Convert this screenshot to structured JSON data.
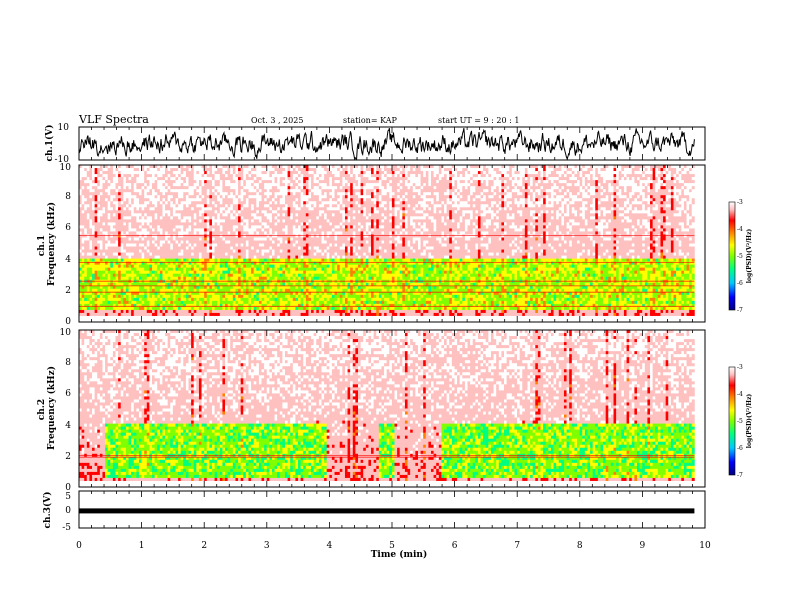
{
  "header": {
    "title": "VLF Spectra",
    "date": "Oct. 3  , 2025",
    "station": "station= KAP",
    "start": "start  UT =   9  : 20 : 1"
  },
  "colors": {
    "palette": [
      "#000080",
      "#0000ff",
      "#00c8ff",
      "#00ff80",
      "#80ff00",
      "#ffff00",
      "#ff8000",
      "#ff0000",
      "#ffc0c0",
      "#ffffff"
    ]
  },
  "chart_data": [
    {
      "type": "line",
      "panel": "ch1-waveform",
      "ylabel": "ch.1(V)",
      "ylim": [
        -10,
        10
      ],
      "y_ticks": [
        "10",
        "-10"
      ],
      "xlim": [
        0,
        10
      ]
    },
    {
      "type": "heatmap",
      "panel": "ch1-spectrogram",
      "ylabel": "ch.1\nFrequency (kHz)",
      "ylim": [
        0,
        10
      ],
      "y_ticks": [
        "0",
        "2",
        "4",
        "6",
        "8",
        "10"
      ],
      "xlim": [
        0,
        10
      ],
      "data_end_min": 9.83,
      "colorbar": {
        "label": "log(PSD)(V²/Hz)",
        "range": [
          -7,
          -3
        ],
        "ticks": [
          "-7",
          "-6",
          "-5",
          "-4",
          "-3"
        ]
      },
      "approx_features": {
        "quiet_band_khz": [
          0.8,
          4.0
        ],
        "quiet_band_log_psd": -5.0,
        "background_log_psd": -3.7,
        "lines_khz": [
          1.0,
          1.9,
          2.3,
          2.6,
          3.8,
          5.5
        ]
      }
    },
    {
      "type": "heatmap",
      "panel": "ch2-spectrogram",
      "ylabel": "ch.2\nFrequency (kHz)",
      "ylim": [
        0,
        10
      ],
      "y_ticks": [
        "0",
        "2",
        "4",
        "6",
        "8",
        "10"
      ],
      "xlim": [
        0,
        10
      ],
      "data_end_min": 9.83,
      "colorbar": {
        "label": "log(PSD)(V²/Hz)",
        "range": [
          -7,
          -3
        ],
        "ticks": [
          "-7",
          "-6",
          "-5",
          "-4",
          "-3"
        ]
      },
      "approx_features": {
        "quiet_band_khz": [
          0.5,
          4.0
        ],
        "quiet_band_log_psd": -5.2,
        "background_log_psd": -3.7,
        "gaps_min": [
          [
            0,
            0.4
          ],
          [
            3.95,
            4.8
          ],
          [
            5.05,
            5.8
          ]
        ],
        "lines_khz": [
          1.9,
          2.0
        ]
      }
    },
    {
      "type": "line",
      "panel": "ch3-waveform",
      "ylabel": "ch.3(V)",
      "ylim": [
        -5,
        5
      ],
      "y_ticks": [
        "5",
        "0",
        "-5"
      ],
      "xlim": [
        0,
        10
      ],
      "xlabel": "Time (min)",
      "x_ticks": [
        "0",
        "1",
        "2",
        "3",
        "4",
        "5",
        "6",
        "7",
        "8",
        "9",
        "10"
      ],
      "approx_level_v": -0.5
    }
  ]
}
